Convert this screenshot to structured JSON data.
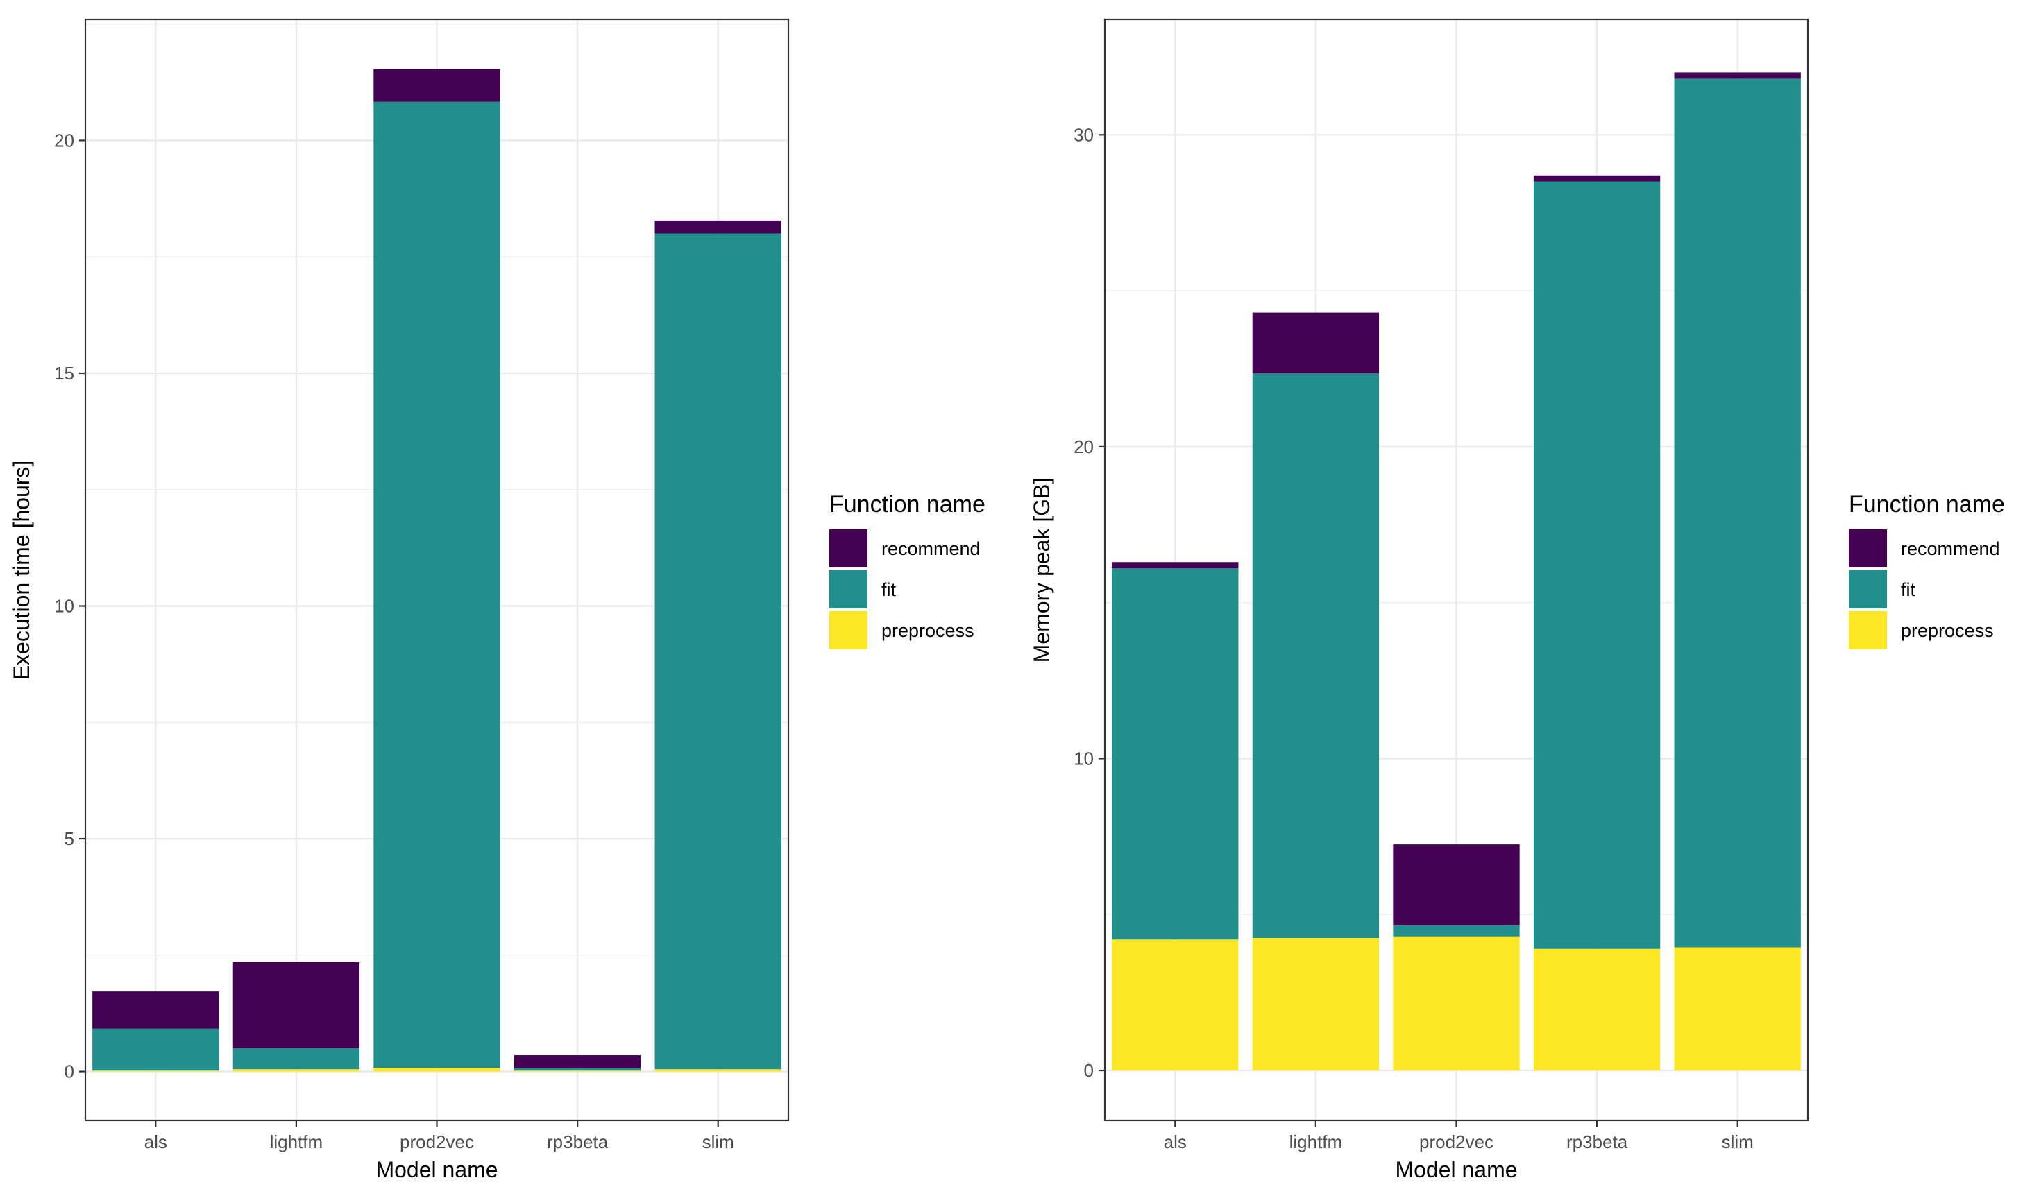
{
  "colors": {
    "recommend": "#440154",
    "fit": "#21908C",
    "preprocess": "#FDE725",
    "grid": "#EBEBEB",
    "axis_text": "#4D4D4D",
    "title_text": "#000000",
    "panel_border": "#333333"
  },
  "legend": {
    "title": "Function name",
    "items": [
      {
        "key": "recommend",
        "label": "recommend"
      },
      {
        "key": "fit",
        "label": "fit"
      },
      {
        "key": "preprocess",
        "label": "preprocess"
      }
    ]
  },
  "chart_data": [
    {
      "type": "bar",
      "stacked": true,
      "title": "",
      "xlabel": "Model name",
      "ylabel": "Execution time [hours]",
      "categories": [
        "als",
        "lightfm",
        "prod2vec",
        "rp3beta",
        "slim"
      ],
      "series": [
        {
          "name": "preprocess",
          "values": [
            0.02,
            0.05,
            0.08,
            0.02,
            0.05
          ]
        },
        {
          "name": "fit",
          "values": [
            0.9,
            0.45,
            20.75,
            0.05,
            17.95
          ]
        },
        {
          "name": "recommend",
          "values": [
            0.8,
            1.85,
            0.7,
            0.28,
            0.28
          ]
        }
      ],
      "ylim": [
        -1.05,
        22.6
      ],
      "yticks": [
        0,
        5,
        10,
        15,
        20
      ],
      "grid": true,
      "legend_position": "right"
    },
    {
      "type": "bar",
      "stacked": true,
      "title": "",
      "xlabel": "Model name",
      "ylabel": "Memory peak [GB]",
      "categories": [
        "als",
        "lightfm",
        "prod2vec",
        "rp3beta",
        "slim"
      ],
      "series": [
        {
          "name": "preprocess",
          "values": [
            4.2,
            4.25,
            4.3,
            3.9,
            3.95
          ]
        },
        {
          "name": "fit",
          "values": [
            11.9,
            18.1,
            0.35,
            24.6,
            27.85
          ]
        },
        {
          "name": "recommend",
          "values": [
            0.2,
            1.95,
            2.6,
            0.2,
            0.2
          ]
        }
      ],
      "ylim": [
        -1.6,
        33.7
      ],
      "yticks": [
        0,
        10,
        20,
        30
      ],
      "grid": true,
      "legend_position": "right"
    }
  ]
}
